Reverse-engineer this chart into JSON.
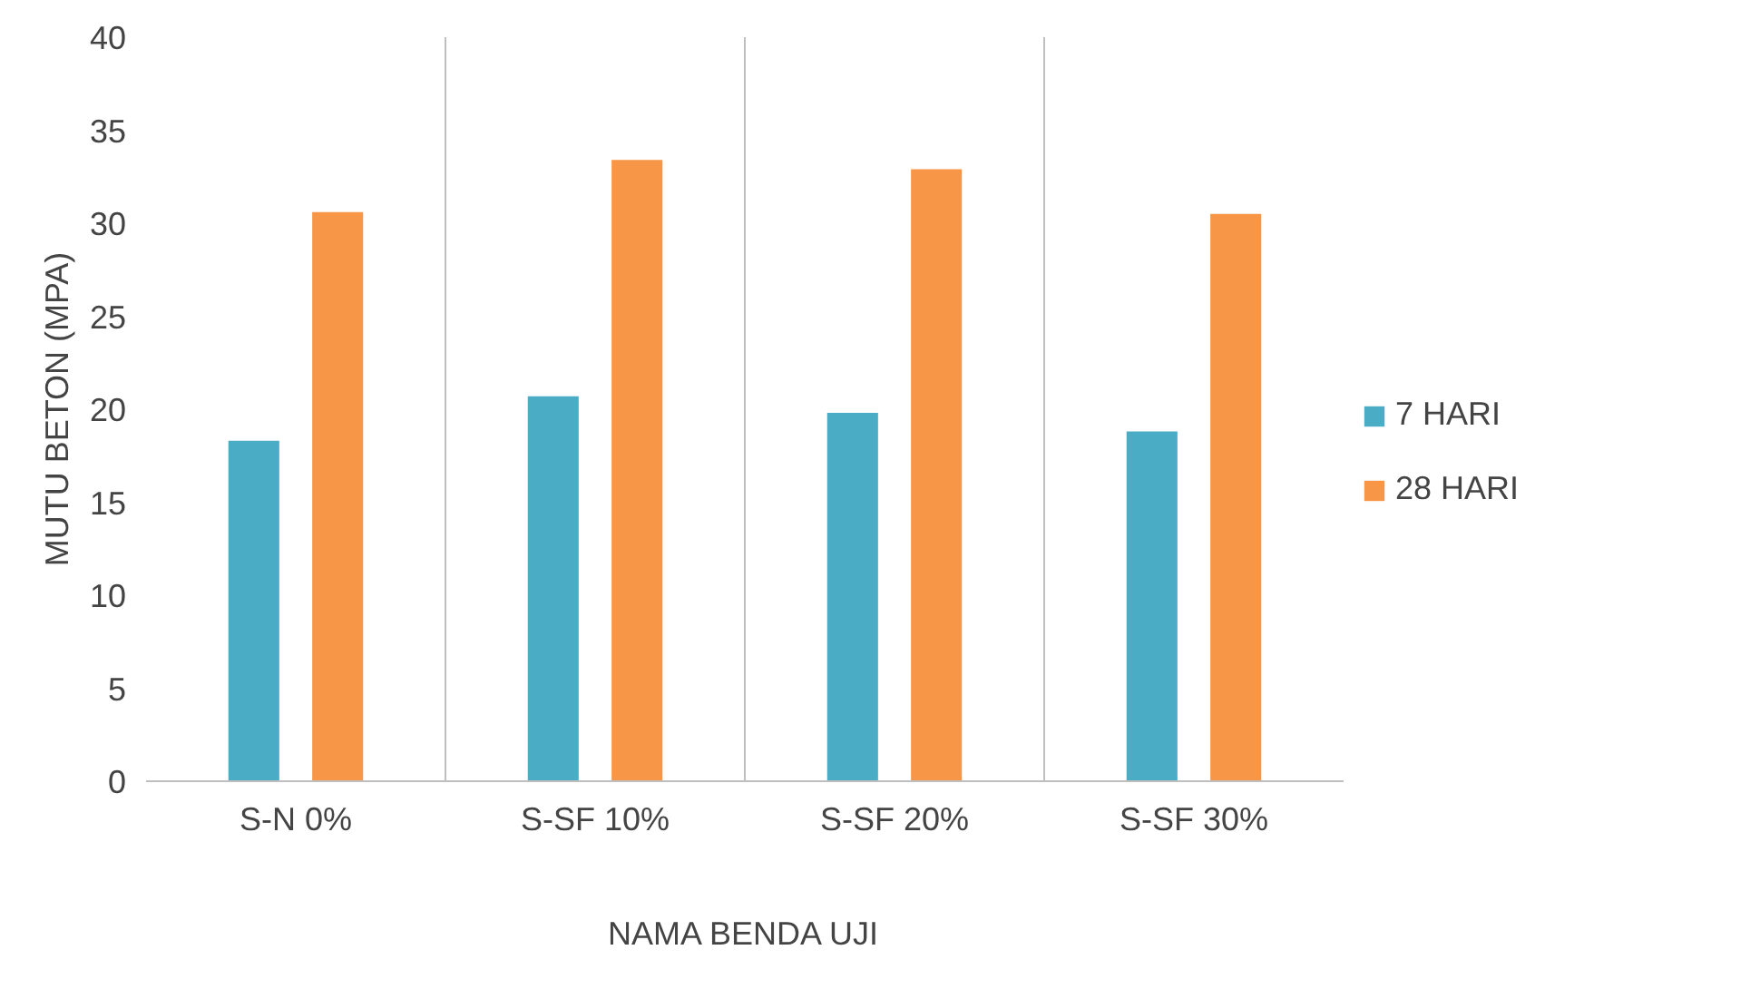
{
  "chart_data": {
    "type": "bar",
    "xlabel": "NAMA BENDA UJI",
    "ylabel": "MUTU BETON (MPA)",
    "categories": [
      "S-N 0%",
      "S-SF 10%",
      "S-SF 20%",
      "S-SF 30%"
    ],
    "series": [
      {
        "name": "7 HARI",
        "color": "#4bacc6",
        "values": [
          18.3,
          20.7,
          19.8,
          18.8
        ]
      },
      {
        "name": "28 HARI",
        "color": "#f79646",
        "values": [
          30.6,
          33.4,
          32.9,
          30.5
        ]
      }
    ],
    "ylim": [
      0,
      40
    ],
    "yticks": [
      0,
      5,
      10,
      15,
      20,
      25,
      30,
      35,
      40
    ],
    "grid": "x",
    "legend": "right"
  }
}
